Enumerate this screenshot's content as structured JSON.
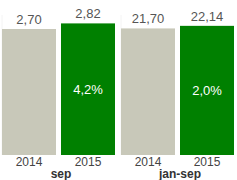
{
  "chart_data": [
    {
      "type": "bar",
      "title": "sep",
      "categories": [
        "2014",
        "2015"
      ],
      "values": [
        2.7,
        2.82
      ],
      "value_labels": [
        "2,70",
        "2,82"
      ],
      "colors": [
        "#c8c8b9",
        "#008000"
      ],
      "ylim": [
        0,
        3.0
      ],
      "data_labels": true,
      "tick_labels": "x",
      "annotation": "4,2%"
    },
    {
      "type": "bar",
      "title": "jan-sep",
      "categories": [
        "2014",
        "2015"
      ],
      "values": [
        21.7,
        22.14
      ],
      "value_labels": [
        "21,70",
        "22,14"
      ],
      "colors": [
        "#c8c8b9",
        "#008000"
      ],
      "ylim": [
        0,
        24.0
      ],
      "data_labels": true,
      "tick_labels": "x",
      "annotation": "2,0%"
    }
  ]
}
